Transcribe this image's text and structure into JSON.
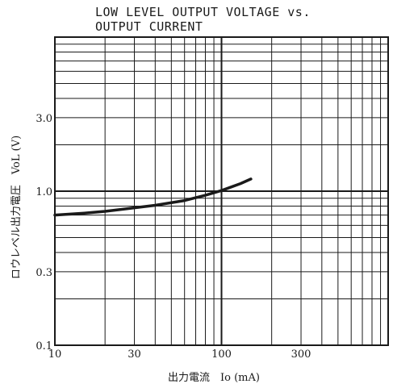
{
  "chart_data": {
    "type": "line",
    "title_line1": "LOW LEVEL OUTPUT VOLTAGE vs.",
    "title_line2": "OUTPUT CURRENT",
    "xlabel": "出力電流　Io (mA)",
    "ylabel": "ロウレベル出力電圧　VoL (V)",
    "x_scale": "log",
    "y_scale": "log",
    "xlim": [
      10,
      1000
    ],
    "ylim": [
      0.1,
      10
    ],
    "x_ticks": [
      {
        "value": 10,
        "label": "10"
      },
      {
        "value": 30,
        "label": "30"
      },
      {
        "value": 100,
        "label": "100"
      },
      {
        "value": 300,
        "label": "300"
      }
    ],
    "y_ticks": [
      {
        "value": 0.1,
        "label": "0.1"
      },
      {
        "value": 0.3,
        "label": "0.3"
      },
      {
        "value": 1,
        "label": "1.0"
      },
      {
        "value": 3,
        "label": "3.0"
      }
    ],
    "grid": true,
    "series": [
      {
        "color": "#1a1a1a",
        "x": [
          10,
          15,
          20,
          30,
          40,
          60,
          80,
          100,
          130,
          150
        ],
        "y": [
          0.7,
          0.72,
          0.74,
          0.78,
          0.81,
          0.87,
          0.94,
          1.01,
          1.12,
          1.2
        ]
      }
    ]
  }
}
